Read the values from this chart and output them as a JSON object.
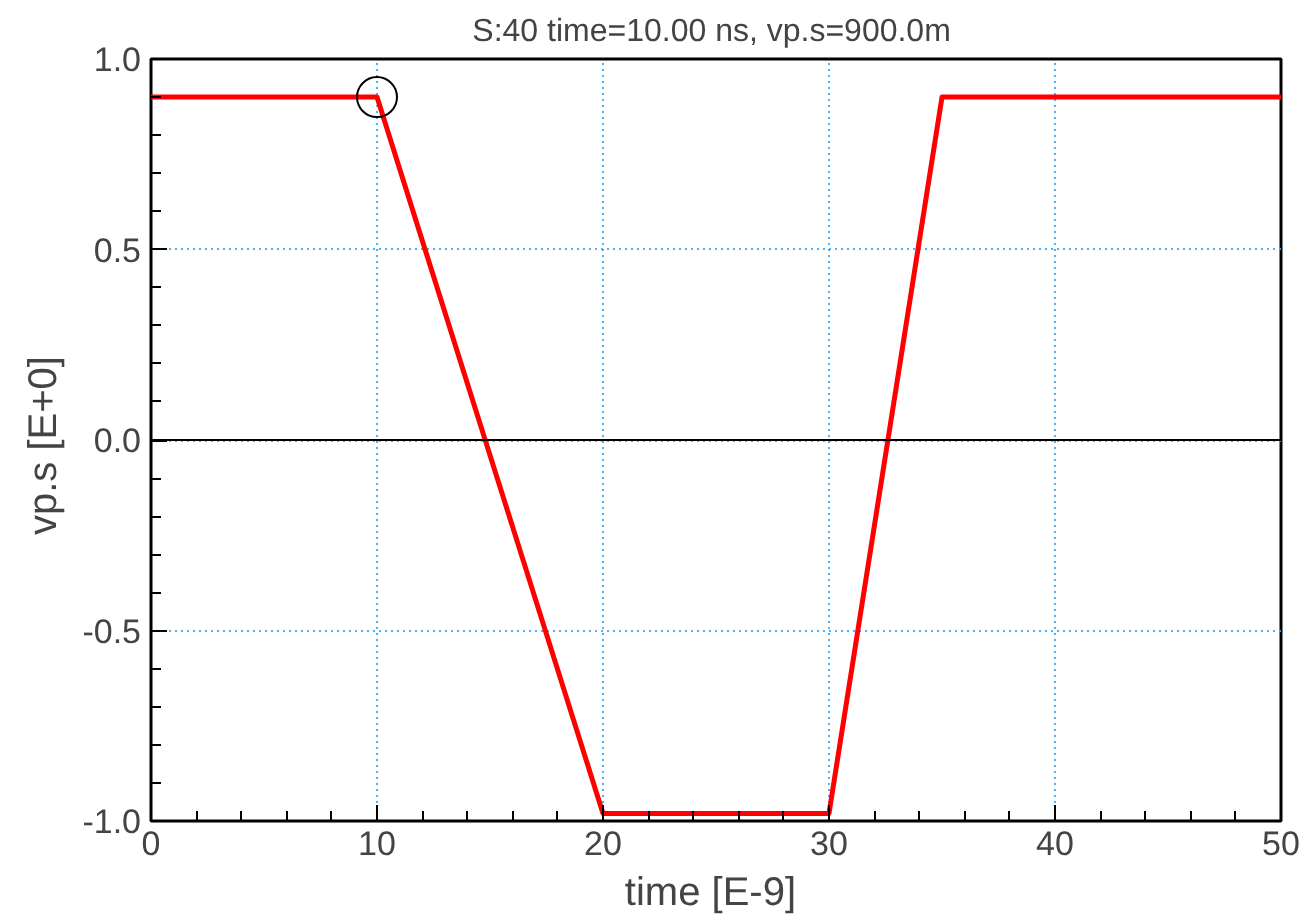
{
  "chart_data": {
    "type": "line",
    "title": "S:40 time=10.00  ns, vp.s=900.0m",
    "xlabel": "time  [E-9]",
    "ylabel": "vp.s  [E+0]",
    "series": [
      {
        "color": "#ff0000",
        "x": [
          0,
          10,
          20,
          30,
          35,
          50
        ],
        "values": [
          0.9,
          0.9,
          -0.98,
          -0.98,
          0.9,
          0.9
        ]
      },
      {
        "type": "scatter",
        "color": "#000000",
        "marker": "circle",
        "x": [
          10
        ],
        "values": [
          0.9
        ]
      }
    ],
    "xlim": [
      0,
      50
    ],
    "ylim": [
      -1.0,
      1.0
    ],
    "xticks": [
      0,
      10,
      20,
      30,
      40,
      50
    ],
    "yticks": [
      {
        "value": -1.0,
        "label": "-1.0"
      },
      {
        "value": -0.5,
        "label": "-0.5"
      },
      {
        "value": 0,
        "label": "0.0"
      },
      {
        "value": 0.5,
        "label": "0.5"
      },
      {
        "value": 1.0,
        "label": "1.0"
      }
    ],
    "ref_lines": [
      {
        "axis": "y",
        "value": 0,
        "color": "#000000"
      }
    ],
    "grid": true
  }
}
